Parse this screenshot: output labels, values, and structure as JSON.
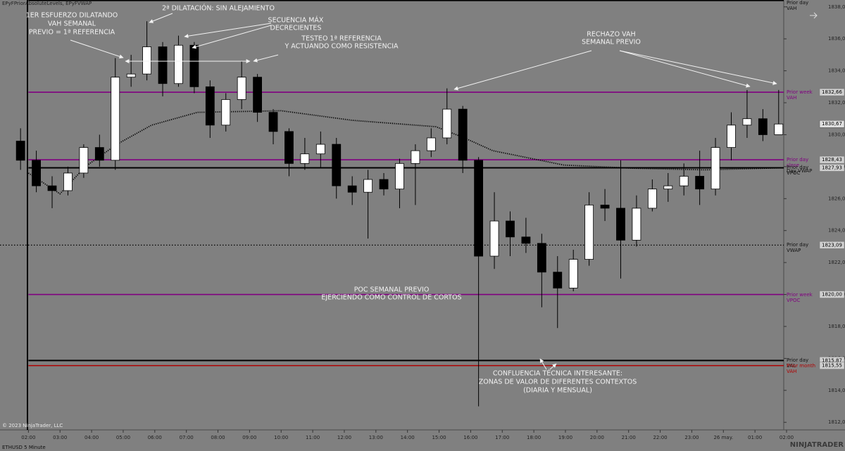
{
  "chart_data": {
    "type": "candlestick",
    "title": "EPyFPriorAbsoluteLevels, EPyFVWAP",
    "instrument": "ETHUSD 5 Minute",
    "copyright": "© 2023 NinjaTrader, LLC",
    "brand": "NINJATRADER",
    "up_color": "#ffffff",
    "down_color": "#000000",
    "x": [
      -0.25,
      0.25,
      0.75,
      1.25,
      1.75,
      2.25,
      2.75,
      3.25,
      3.75,
      4.25,
      4.75,
      5.25,
      5.75,
      6.25,
      6.75,
      7.25,
      7.75,
      8.25,
      8.75,
      9.25,
      9.75,
      10.25,
      10.75,
      11.25,
      11.75,
      12.25,
      12.75,
      13.25,
      13.75,
      14.25,
      14.75,
      15.25,
      15.75,
      16.25,
      16.75,
      17.25,
      17.75,
      18.25,
      18.75,
      19.25,
      19.75,
      20.25,
      20.75,
      21.25,
      21.75,
      22.25,
      22.75,
      23.25,
      23.75
    ],
    "open": [
      1829.6,
      1828.4,
      1826.8,
      1826.5,
      1827.6,
      1829.2,
      1828.4,
      1833.6,
      1833.8,
      1835.5,
      1833.2,
      1835.6,
      1833.0,
      1830.6,
      1832.2,
      1833.6,
      1831.4,
      1830.2,
      1828.2,
      1828.8,
      1829.4,
      1826.8,
      1826.4,
      1827.2,
      1826.6,
      1828.2,
      1829.0,
      1829.8,
      1831.6,
      1828.4,
      1822.4,
      1824.6,
      1823.6,
      1823.2,
      1821.4,
      1820.4,
      1822.2,
      1825.6,
      1825.4,
      1823.4,
      1825.4,
      1826.6,
      1826.8,
      1827.4,
      1826.6,
      1829.2,
      1830.6,
      1831.0,
      1830.0
    ],
    "high": [
      1830.4,
      1829.0,
      1827.4,
      1828.0,
      1829.4,
      1830.0,
      1834.8,
      1835.0,
      1837.1,
      1835.8,
      1836.2,
      1835.8,
      1833.4,
      1832.6,
      1834.6,
      1833.8,
      1831.6,
      1830.4,
      1829.8,
      1830.2,
      1829.8,
      1827.4,
      1827.8,
      1827.6,
      1828.5,
      1829.4,
      1830.4,
      1832.9,
      1831.8,
      1828.6,
      1826.4,
      1825.2,
      1824.8,
      1823.8,
      1822.4,
      1822.8,
      1826.4,
      1826.6,
      1828.4,
      1826.2,
      1827.2,
      1827.6,
      1828.2,
      1829.0,
      1829.8,
      1831.4,
      1832.8,
      1831.6,
      1832.8
    ],
    "low": [
      1827.8,
      1826.4,
      1825.4,
      1826.2,
      1827.3,
      1828.0,
      1827.8,
      1833.0,
      1833.4,
      1832.4,
      1833.0,
      1832.6,
      1829.8,
      1830.2,
      1831.6,
      1830.8,
      1829.4,
      1827.4,
      1827.8,
      1827.9,
      1826.0,
      1825.6,
      1823.5,
      1826.2,
      1825.4,
      1825.6,
      1828.6,
      1829.4,
      1827.6,
      1813.0,
      1821.6,
      1822.4,
      1822.6,
      1819.2,
      1817.9,
      1820.2,
      1821.8,
      1824.6,
      1821.0,
      1823.0,
      1825.2,
      1825.8,
      1826.2,
      1825.6,
      1826.2,
      1828.4,
      1829.8,
      1829.6,
      1830.0
    ],
    "close": [
      1828.4,
      1826.8,
      1826.5,
      1827.6,
      1829.2,
      1828.4,
      1833.6,
      1833.8,
      1835.5,
      1833.2,
      1835.6,
      1833.0,
      1830.6,
      1832.2,
      1833.6,
      1831.4,
      1830.2,
      1828.2,
      1828.8,
      1829.4,
      1826.8,
      1826.4,
      1827.2,
      1826.6,
      1828.2,
      1829.0,
      1829.8,
      1831.6,
      1828.4,
      1822.4,
      1824.6,
      1823.6,
      1823.2,
      1821.4,
      1820.4,
      1822.2,
      1825.6,
      1825.4,
      1823.4,
      1825.4,
      1826.6,
      1826.8,
      1827.4,
      1826.6,
      1829.2,
      1830.6,
      1831.0,
      1830.0,
      1830.67
    ],
    "last_close_label": "1830,67",
    "vwap": {
      "name": "Day VWAP",
      "color": "#000000",
      "x": [
        0,
        1,
        1.8,
        2.8,
        3.9,
        5.35,
        8,
        10.25,
        12.9,
        13.8,
        14.7,
        16.95,
        19.15,
        21.4,
        23.9
      ],
      "values": [
        1827.6,
        1826.3,
        1828.0,
        1829.4,
        1830.6,
        1831.4,
        1831.5,
        1830.9,
        1830.5,
        1829.8,
        1829.0,
        1828.1,
        1827.9,
        1827.8,
        1827.93
      ]
    },
    "levels": [
      {
        "name": "Prior day VAH",
        "value": 1838.4,
        "color": "#000000",
        "style": "solid"
      },
      {
        "name": "Prior week VAH",
        "value": 1832.66,
        "value_label": "1832,66",
        "color": "#800080",
        "style": "solid"
      },
      {
        "name": "Prior day close",
        "value": 1828.43,
        "value_label": "1828,43",
        "color": "#800080",
        "style": "solid"
      },
      {
        "name": "Prior day VPOC",
        "value": 1827.93,
        "value_label": "1827,93",
        "color": "#000000",
        "style": "solid"
      },
      {
        "name": "Prior day VWAP",
        "value": 1823.09,
        "value_label": "1823,09",
        "color": "#000000",
        "style": "dotted"
      },
      {
        "name": "Prior week VPOC",
        "value": 1820.0,
        "value_label": "1820,00",
        "color": "#800080",
        "style": "solid"
      },
      {
        "name": "Prior day VAL",
        "value": 1815.87,
        "value_label": "1815,87",
        "color": "#000000",
        "style": "solid"
      },
      {
        "name": "Prior month VAH",
        "value": 1815.55,
        "value_label": "1815,55",
        "color": "#b00000",
        "style": "solid"
      }
    ],
    "xlim": [
      -0.9,
      24
    ],
    "xticks": [
      {
        "value": 0,
        "label": "02:00"
      },
      {
        "value": 1,
        "label": "03:00"
      },
      {
        "value": 2,
        "label": "04:00"
      },
      {
        "value": 3,
        "label": "05:00"
      },
      {
        "value": 4,
        "label": "06:00"
      },
      {
        "value": 5,
        "label": "07:00"
      },
      {
        "value": 6,
        "label": "08:00"
      },
      {
        "value": 7,
        "label": "09:00"
      },
      {
        "value": 8,
        "label": "10:00"
      },
      {
        "value": 9,
        "label": "11:00"
      },
      {
        "value": 10,
        "label": "12:00"
      },
      {
        "value": 11,
        "label": "13:00"
      },
      {
        "value": 12,
        "label": "14:00"
      },
      {
        "value": 13,
        "label": "15:00"
      },
      {
        "value": 14,
        "label": "16:00"
      },
      {
        "value": 15,
        "label": "17:00"
      },
      {
        "value": 16,
        "label": "18:00"
      },
      {
        "value": 17,
        "label": "19:00"
      },
      {
        "value": 18,
        "label": "20:00"
      },
      {
        "value": 19,
        "label": "21:00"
      },
      {
        "value": 20,
        "label": "22:00"
      },
      {
        "value": 21,
        "label": "23:00"
      },
      {
        "value": 22,
        "label": "26 may."
      },
      {
        "value": 23,
        "label": "01:00"
      },
      {
        "value": 24,
        "label": "02:00"
      }
    ],
    "ylim": [
      1811.57,
      1838.43
    ],
    "yticks": [
      {
        "value": 1812,
        "label": "1812,00"
      },
      {
        "value": 1814,
        "label": "1814,00"
      },
      {
        "value": 1816,
        "label": "1816,00"
      },
      {
        "value": 1818,
        "label": "1818,00"
      },
      {
        "value": 1820,
        "label": "1820,00"
      },
      {
        "value": 1822,
        "label": "1822,00"
      },
      {
        "value": 1824,
        "label": "1824,00"
      },
      {
        "value": 1826,
        "label": "1826,00"
      },
      {
        "value": 1828,
        "label": "1828,00"
      },
      {
        "value": 1830,
        "label": "1830,00"
      },
      {
        "value": 1832,
        "label": "1832,00"
      },
      {
        "value": 1834,
        "label": "1834,00"
      },
      {
        "value": 1836,
        "label": "1836,00"
      },
      {
        "value": 1838,
        "label": "1838,00"
      }
    ],
    "grid": false,
    "annotations": [
      {
        "lines": [
          "1ER ESFUERZO DILATANDO",
          "VAH SEMANAL",
          "PREVIO = 1ª REFERENCIA"
        ]
      },
      {
        "lines": [
          "2ª DILATACIÓN: SIN ALEJAMIENTO"
        ]
      },
      {
        "lines": [
          "SECUENCIA MÁX",
          "DECRECIENTES"
        ]
      },
      {
        "lines": [
          "TESTEO 1ª REFERENCIA",
          "Y ACTUANDO COMO RESISTENCIA"
        ]
      },
      {
        "lines": [
          "RECHAZO VAH",
          "SEMANAL PREVIO"
        ]
      },
      {
        "lines": [
          "POC SEMANAL PREVIO",
          "EJERCIENDO COMO CONTROL DE CORTOS"
        ]
      },
      {
        "lines": [
          "CONFLUENCIA TÉCNICA INTERESANTE:",
          "ZONAS DE VALOR DE DIFERENTES CONTEXTOS",
          "(DIARIA Y  MENSUAL)"
        ]
      }
    ]
  }
}
